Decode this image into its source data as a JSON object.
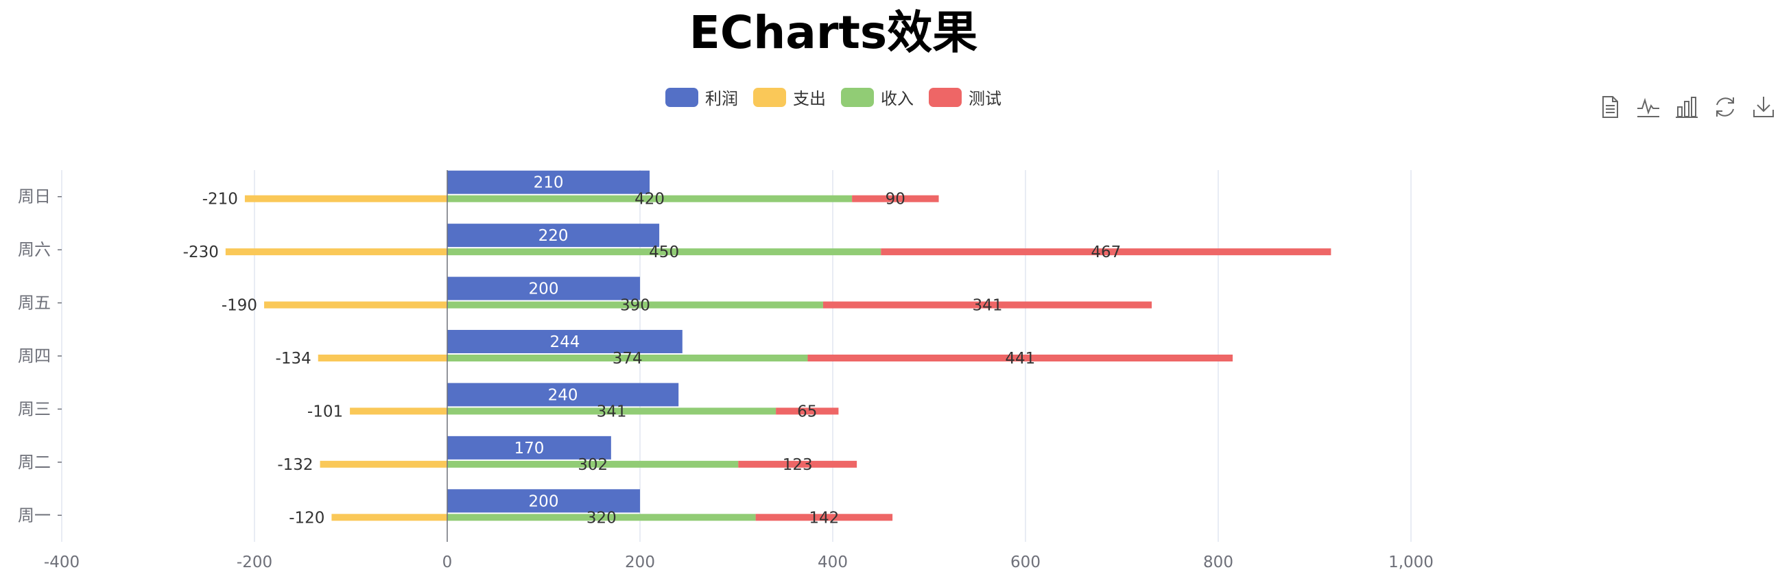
{
  "title": "ECharts效果",
  "legend": [
    {
      "name": "利润",
      "color": "#5470c6"
    },
    {
      "name": "支出",
      "color": "#fac858"
    },
    {
      "name": "收入",
      "color": "#91cc75"
    },
    {
      "name": "测试",
      "color": "#ee6666"
    }
  ],
  "toolbox": [
    "data-view-icon",
    "line-chart-icon",
    "bar-chart-icon",
    "restore-icon",
    "download-icon"
  ],
  "chart_data": {
    "type": "bar",
    "orientation": "horizontal",
    "categories": [
      "周一",
      "周二",
      "周三",
      "周四",
      "周五",
      "周六",
      "周日"
    ],
    "xlim": [
      -400,
      1200
    ],
    "xticks": [
      -400,
      -200,
      0,
      200,
      400,
      600,
      800,
      1000
    ],
    "xtick_labels": [
      "-400",
      "-200",
      "0",
      "200",
      "400",
      "600",
      "800",
      "1,000"
    ],
    "grid": true,
    "legend_position": "top-center",
    "series": [
      {
        "name": "利润",
        "values": [
          200,
          170,
          240,
          244,
          200,
          220,
          210
        ],
        "color": "#5470c6"
      },
      {
        "name": "支出",
        "values": [
          -120,
          -132,
          -101,
          -134,
          -190,
          -230,
          -210
        ],
        "color": "#fac858"
      },
      {
        "name": "收入",
        "values": [
          320,
          302,
          341,
          374,
          390,
          450,
          420
        ],
        "color": "#91cc75"
      },
      {
        "name": "测试",
        "values": [
          142,
          123,
          65,
          441,
          341,
          467,
          90
        ],
        "color": "#ee6666"
      }
    ]
  }
}
